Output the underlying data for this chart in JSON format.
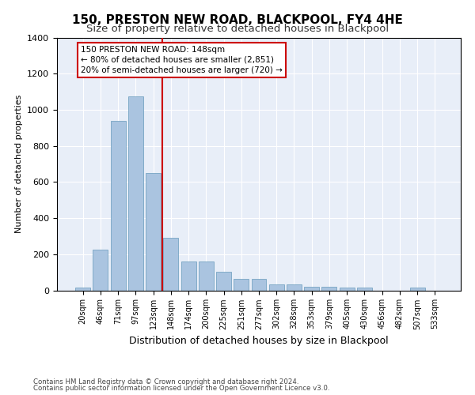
{
  "title": "150, PRESTON NEW ROAD, BLACKPOOL, FY4 4HE",
  "subtitle": "Size of property relative to detached houses in Blackpool",
  "xlabel": "Distribution of detached houses by size in Blackpool",
  "ylabel": "Number of detached properties",
  "bar_labels": [
    "20sqm",
    "46sqm",
    "71sqm",
    "97sqm",
    "123sqm",
    "148sqm",
    "174sqm",
    "200sqm",
    "225sqm",
    "251sqm",
    "277sqm",
    "302sqm",
    "328sqm",
    "353sqm",
    "379sqm",
    "405sqm",
    "430sqm",
    "456sqm",
    "482sqm",
    "507sqm",
    "533sqm"
  ],
  "bar_values": [
    15,
    225,
    940,
    1075,
    650,
    290,
    160,
    160,
    105,
    65,
    65,
    35,
    35,
    20,
    20,
    15,
    15,
    0,
    0,
    15,
    0
  ],
  "bar_color": "#aac4e0",
  "bar_edge_color": "#6699bb",
  "vline_x_index": 5,
  "vline_color": "#cc0000",
  "annotation_text": "150 PRESTON NEW ROAD: 148sqm\n← 80% of detached houses are smaller (2,851)\n20% of semi-detached houses are larger (720) →",
  "annotation_box_color": "#cc0000",
  "ylim": [
    0,
    1400
  ],
  "yticks": [
    0,
    200,
    400,
    600,
    800,
    1000,
    1200,
    1400
  ],
  "background_color": "#e8eef8",
  "footnote1": "Contains HM Land Registry data © Crown copyright and database right 2024.",
  "footnote2": "Contains public sector information licensed under the Open Government Licence v3.0.",
  "title_fontsize": 11,
  "subtitle_fontsize": 9.5,
  "xlabel_fontsize": 9,
  "ylabel_fontsize": 8
}
